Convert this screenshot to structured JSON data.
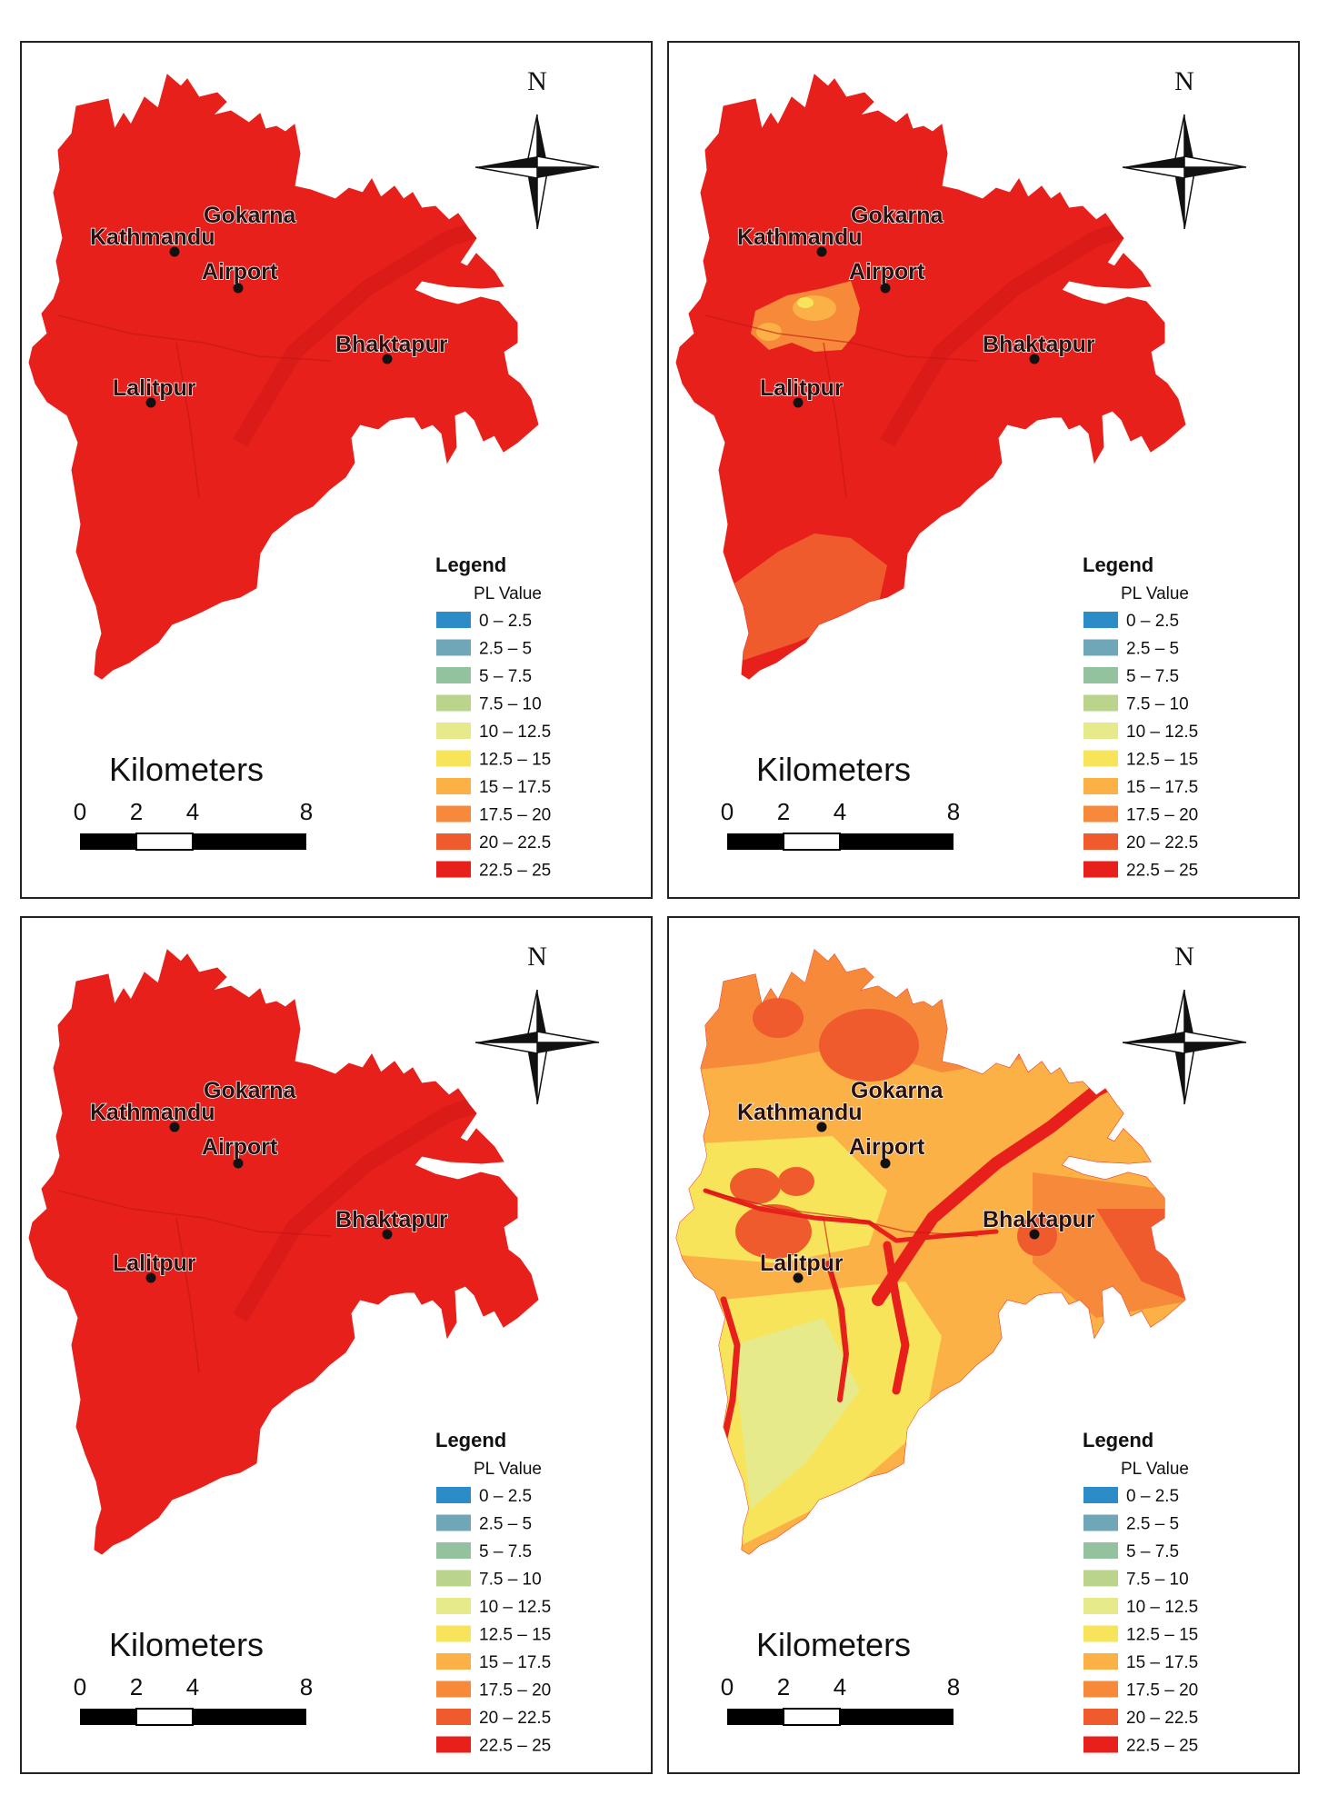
{
  "colors": {
    "background": "#ffffff",
    "base_red": "#e8201b",
    "dark_red": "#d41a16",
    "legend": [
      "#2b8cc7",
      "#6fa7b8",
      "#93c29f",
      "#bbd48c",
      "#e6ea8a",
      "#f8e45a",
      "#fbb146",
      "#f7893a",
      "#ef5b2d",
      "#e8201b"
    ]
  },
  "legend": {
    "title": "Legend",
    "subtitle": "PL Value",
    "classes": [
      "0 – 2.5",
      "2.5 – 5",
      "5 – 7.5",
      "7.5 – 10",
      "10 – 12.5",
      "12.5 – 15",
      "15 – 17.5",
      "17.5 – 20",
      "20 – 22.5",
      "22.5 – 25"
    ]
  },
  "north_arrow": {
    "label": "N",
    "icon": "north-arrow-compass-icon"
  },
  "scale_bar": {
    "title": "Kilometers",
    "ticks": [
      "0",
      "2",
      "4",
      "8"
    ]
  },
  "cities": [
    "Kathmandu",
    "Gokarna",
    "Airport",
    "Bhaktapur",
    "Lalitpur"
  ],
  "panels": [
    {
      "id": "top-left",
      "legend": {
        "title": "Legend",
        "subtitle": "PL Value",
        "classes": [
          "0 – 2.5",
          "2.5 – 5",
          "5 – 7.5",
          "7.5 – 10",
          "10 – 12.5",
          "12.5 – 15",
          "15 – 17.5",
          "17.5 – 20",
          "20 – 22.5",
          "22.5 – 25"
        ]
      },
      "north_label": "N",
      "scale": {
        "title": "Kilometers",
        "ticks": [
          "0",
          "2",
          "4",
          "8"
        ]
      },
      "cities": [
        "Kathmandu",
        "Gokarna",
        "Airport",
        "Bhaktapur",
        "Lalitpur"
      ],
      "zones": []
    },
    {
      "id": "top-right",
      "legend": {
        "title": "Legend",
        "subtitle": "PL Value",
        "classes": [
          "0 – 2.5",
          "2.5 – 5",
          "5 – 7.5",
          "7.5 – 10",
          "10 – 12.5",
          "12.5 – 15",
          "15 – 17.5",
          "17.5 – 20",
          "20 – 22.5",
          "22.5 – 25"
        ]
      },
      "north_label": "N",
      "scale": {
        "title": "Kilometers",
        "ticks": [
          "0",
          "2",
          "4",
          "8"
        ]
      },
      "cities": [
        "Kathmandu",
        "Gokarna",
        "Airport",
        "Bhaktapur",
        "Lalitpur"
      ],
      "zones": [
        "central-patch",
        "south-band"
      ]
    },
    {
      "id": "bottom-left",
      "legend": {
        "title": "Legend",
        "subtitle": "PL Value",
        "classes": [
          "0 – 2.5",
          "2.5 – 5",
          "5 – 7.5",
          "7.5 – 10",
          "10 – 12.5",
          "12.5 – 15",
          "15 – 17.5",
          "17.5 – 20",
          "20 – 22.5",
          "22.5 – 25"
        ]
      },
      "north_label": "N",
      "scale": {
        "title": "Kilometers",
        "ticks": [
          "0",
          "2",
          "4",
          "8"
        ]
      },
      "cities": [
        "Kathmandu",
        "Gokarna",
        "Airport",
        "Bhaktapur",
        "Lalitpur"
      ],
      "zones": []
    },
    {
      "id": "bottom-right",
      "legend": {
        "title": "Legend",
        "subtitle": "PL Value",
        "classes": [
          "0 – 2.5",
          "2.5 – 5",
          "5 – 7.5",
          "7.5 – 10",
          "10 – 12.5",
          "12.5 – 15",
          "15 – 17.5",
          "17.5 – 20",
          "20 – 22.5",
          "22.5 – 25"
        ]
      },
      "north_label": "N",
      "scale": {
        "title": "Kilometers",
        "ticks": [
          "0",
          "2",
          "4",
          "8"
        ]
      },
      "cities": [
        "Kathmandu",
        "Gokarna",
        "Airport",
        "Bhaktapur",
        "Lalitpur"
      ],
      "zones": [
        "mixed-gradient"
      ]
    }
  ]
}
